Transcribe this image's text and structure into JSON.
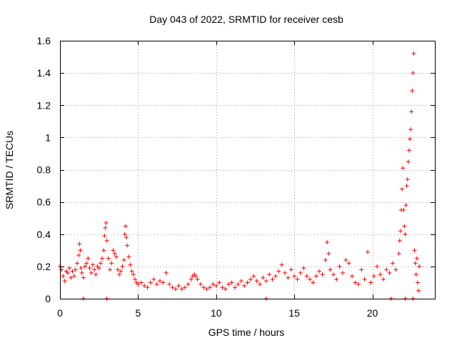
{
  "chart_data": {
    "type": "scatter",
    "title": "Day 043 of 2022, SRMTID for receiver cesb",
    "xlabel": "GPS time / hours",
    "ylabel": "SRMTID / TECUs",
    "xlim": [
      0,
      24
    ],
    "ylim": [
      0,
      1.6
    ],
    "xticks": [
      0,
      5,
      10,
      15,
      20
    ],
    "xtick_labels": [
      "0",
      "5",
      "10",
      "15",
      "20"
    ],
    "yticks": [
      0,
      0.2,
      0.4,
      0.6,
      0.8,
      1.0,
      1.2,
      1.4,
      1.6
    ],
    "ytick_labels": [
      "0",
      "0.2",
      "0.4",
      "0.6",
      "0.8",
      "1",
      "1.2",
      "1.4",
      "1.6"
    ],
    "grid": true,
    "marker": "+",
    "color": "#ff0000",
    "series": [
      {
        "name": "cesb",
        "points": [
          [
            0.0,
            0.2
          ],
          [
            0.1,
            0.18
          ],
          [
            0.2,
            0.14
          ],
          [
            0.3,
            0.11
          ],
          [
            0.4,
            0.17
          ],
          [
            0.5,
            0.16
          ],
          [
            0.6,
            0.19
          ],
          [
            0.7,
            0.13
          ],
          [
            0.8,
            0.17
          ],
          [
            0.9,
            0.14
          ],
          [
            1.0,
            0.18
          ],
          [
            1.1,
            0.22
          ],
          [
            1.2,
            0.27
          ],
          [
            1.25,
            0.34
          ],
          [
            1.3,
            0.3
          ],
          [
            1.35,
            0.19
          ],
          [
            1.4,
            0.16
          ],
          [
            1.5,
            0.13
          ],
          [
            1.6,
            0.2
          ],
          [
            1.7,
            0.22
          ],
          [
            1.8,
            0.25
          ],
          [
            1.9,
            0.19
          ],
          [
            2.0,
            0.16
          ],
          [
            2.1,
            0.21
          ],
          [
            2.2,
            0.18
          ],
          [
            2.3,
            0.15
          ],
          [
            2.4,
            0.2
          ],
          [
            2.5,
            0.19
          ],
          [
            2.6,
            0.22
          ],
          [
            2.7,
            0.25
          ],
          [
            2.8,
            0.3
          ],
          [
            2.85,
            0.39
          ],
          [
            2.9,
            0.44
          ],
          [
            2.95,
            0.47
          ],
          [
            3.0,
            0.36
          ],
          [
            3.1,
            0.25
          ],
          [
            3.2,
            0.18
          ],
          [
            3.3,
            0.22
          ],
          [
            3.4,
            0.3
          ],
          [
            3.5,
            0.28
          ],
          [
            3.6,
            0.26
          ],
          [
            3.7,
            0.18
          ],
          [
            3.8,
            0.15
          ],
          [
            3.9,
            0.17
          ],
          [
            4.0,
            0.2
          ],
          [
            4.1,
            0.24
          ],
          [
            4.15,
            0.4
          ],
          [
            4.2,
            0.45
          ],
          [
            4.25,
            0.38
          ],
          [
            4.3,
            0.33
          ],
          [
            4.4,
            0.26
          ],
          [
            4.5,
            0.21
          ],
          [
            4.6,
            0.17
          ],
          [
            4.7,
            0.15
          ],
          [
            4.8,
            0.12
          ],
          [
            4.9,
            0.1
          ],
          [
            5.0,
            0.09
          ],
          [
            5.2,
            0.1
          ],
          [
            5.4,
            0.08
          ],
          [
            5.6,
            0.07
          ],
          [
            5.8,
            0.1
          ],
          [
            6.0,
            0.12
          ],
          [
            6.2,
            0.09
          ],
          [
            6.4,
            0.11
          ],
          [
            6.6,
            0.1
          ],
          [
            6.8,
            0.16
          ],
          [
            7.0,
            0.09
          ],
          [
            7.2,
            0.07
          ],
          [
            7.4,
            0.06
          ],
          [
            7.6,
            0.08
          ],
          [
            7.8,
            0.06
          ],
          [
            8.0,
            0.07
          ],
          [
            8.2,
            0.09
          ],
          [
            8.4,
            0.12
          ],
          [
            8.5,
            0.14
          ],
          [
            8.6,
            0.15
          ],
          [
            8.7,
            0.14
          ],
          [
            8.8,
            0.12
          ],
          [
            9.0,
            0.09
          ],
          [
            9.2,
            0.07
          ],
          [
            9.4,
            0.06
          ],
          [
            9.6,
            0.07
          ],
          [
            9.8,
            0.09
          ],
          [
            10.0,
            0.08
          ],
          [
            10.2,
            0.1
          ],
          [
            10.4,
            0.07
          ],
          [
            10.6,
            0.06
          ],
          [
            10.8,
            0.09
          ],
          [
            11.0,
            0.1
          ],
          [
            11.2,
            0.07
          ],
          [
            11.4,
            0.09
          ],
          [
            11.6,
            0.11
          ],
          [
            11.8,
            0.08
          ],
          [
            12.0,
            0.1
          ],
          [
            12.2,
            0.12
          ],
          [
            12.4,
            0.14
          ],
          [
            12.6,
            0.11
          ],
          [
            12.8,
            0.09
          ],
          [
            13.0,
            0.13
          ],
          [
            13.2,
            0.11
          ],
          [
            13.4,
            0.15
          ],
          [
            13.6,
            0.12
          ],
          [
            13.8,
            0.14
          ],
          [
            14.0,
            0.17
          ],
          [
            14.2,
            0.21
          ],
          [
            14.4,
            0.16
          ],
          [
            14.6,
            0.13
          ],
          [
            14.8,
            0.18
          ],
          [
            15.0,
            0.14
          ],
          [
            15.2,
            0.12
          ],
          [
            15.4,
            0.16
          ],
          [
            15.6,
            0.19
          ],
          [
            15.8,
            0.14
          ],
          [
            16.0,
            0.12
          ],
          [
            16.2,
            0.1
          ],
          [
            16.4,
            0.14
          ],
          [
            16.6,
            0.17
          ],
          [
            16.8,
            0.15
          ],
          [
            17.0,
            0.24
          ],
          [
            17.1,
            0.35
          ],
          [
            17.2,
            0.28
          ],
          [
            17.3,
            0.18
          ],
          [
            17.5,
            0.15
          ],
          [
            17.7,
            0.12
          ],
          [
            17.9,
            0.2
          ],
          [
            18.1,
            0.16
          ],
          [
            18.3,
            0.24
          ],
          [
            18.5,
            0.22
          ],
          [
            18.7,
            0.14
          ],
          [
            18.9,
            0.1
          ],
          [
            19.1,
            0.09
          ],
          [
            19.3,
            0.18
          ],
          [
            19.5,
            0.12
          ],
          [
            19.7,
            0.29
          ],
          [
            19.9,
            0.1
          ],
          [
            20.1,
            0.14
          ],
          [
            20.3,
            0.2
          ],
          [
            20.5,
            0.15
          ],
          [
            20.7,
            0.12
          ],
          [
            20.9,
            0.18
          ],
          [
            21.1,
            0.16
          ],
          [
            21.3,
            0.22
          ],
          [
            21.5,
            0.18
          ],
          [
            21.7,
            0.28
          ],
          [
            21.75,
            0.36
          ],
          [
            21.8,
            0.42
          ],
          [
            21.85,
            0.55
          ],
          [
            21.9,
            0.68
          ],
          [
            21.95,
            0.81
          ],
          [
            22.0,
            0.55
          ],
          [
            22.05,
            0.45
          ],
          [
            22.1,
            0.4
          ],
          [
            22.15,
            0.58
          ],
          [
            22.2,
            0.7
          ],
          [
            22.25,
            0.74
          ],
          [
            22.3,
            0.85
          ],
          [
            22.35,
            0.92
          ],
          [
            22.4,
            0.99
          ],
          [
            22.45,
            1.05
          ],
          [
            22.5,
            1.16
          ],
          [
            22.55,
            1.29
          ],
          [
            22.6,
            1.4
          ],
          [
            22.65,
            1.52
          ],
          [
            22.7,
            0.3
          ],
          [
            22.75,
            0.22
          ],
          [
            22.8,
            0.15
          ],
          [
            22.85,
            0.25
          ],
          [
            22.9,
            0.1
          ],
          [
            22.95,
            0.05
          ],
          [
            23.0,
            0.2
          ],
          [
            1.5,
            0.0
          ],
          [
            3.0,
            0.0
          ],
          [
            13.2,
            0.0
          ],
          [
            21.2,
            0.0
          ],
          [
            22.1,
            0.0
          ],
          [
            22.6,
            0.0
          ]
        ]
      }
    ]
  }
}
